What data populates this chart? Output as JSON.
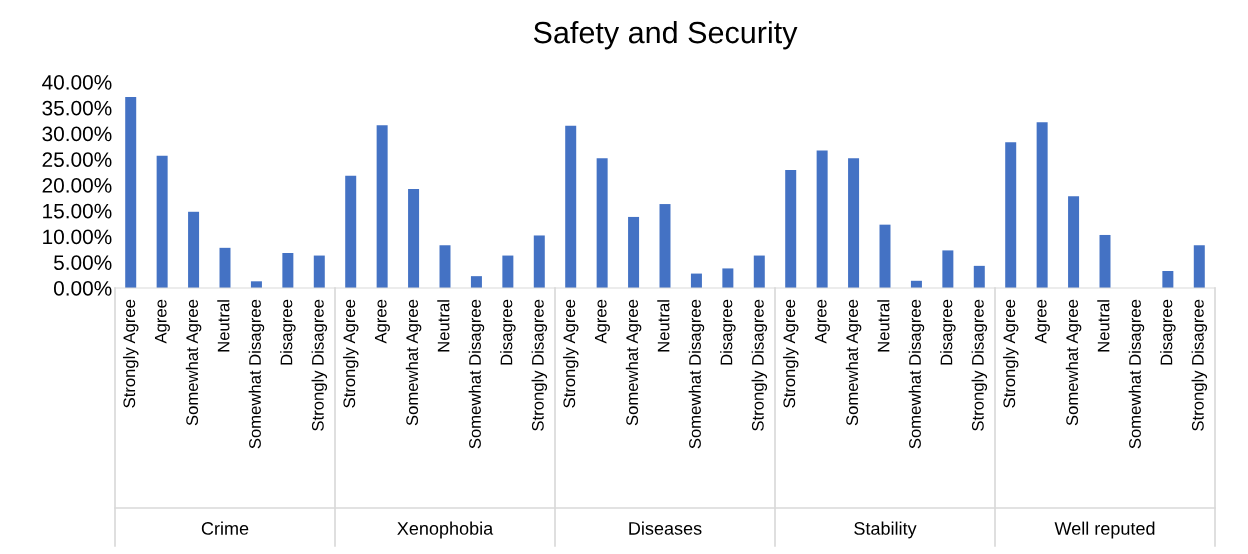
{
  "chart_data": {
    "type": "bar",
    "title": "Safety and Security",
    "categories": [
      "Strongly Agree",
      "Agree",
      "Somewhat Agree",
      "Neutral",
      "Somewhat Disagree",
      "Disagree",
      "Strongly Disagree",
      "Strongly Agree",
      "Agree",
      "Somewhat Agree",
      "Neutral",
      "Somewhat Disagree",
      "Disagree",
      "Strongly Disagree",
      "Strongly Agree",
      "Agree",
      "Somewhat Agree",
      "Neutral",
      "Somewhat Disagree",
      "Disagree",
      "Strongly Disagree",
      "Strongly Agree",
      "Agree",
      "Somewhat Agree",
      "Neutral",
      "Somewhat Disagree",
      "Disagree",
      "Strongly Disagree",
      "Strongly Agree",
      "Agree",
      "Somewhat Agree",
      "Neutral",
      "Somewhat Disagree",
      "Disagree",
      "Strongly Disagree"
    ],
    "values": [
      37.1,
      25.7,
      14.8,
      7.8,
      1.3,
      6.8,
      6.3,
      21.8,
      31.6,
      19.2,
      8.3,
      2.3,
      6.3,
      10.2,
      31.5,
      25.2,
      13.8,
      16.3,
      2.8,
      3.8,
      6.3,
      22.9,
      26.7,
      25.2,
      12.3,
      1.4,
      7.3,
      4.3,
      28.3,
      32.2,
      17.8,
      10.3,
      0,
      3.3,
      8.3
    ],
    "color": "#4472c4",
    "ylim": [
      0,
      40
    ],
    "yticks": [
      {
        "value": 0,
        "label": "0.00%"
      },
      {
        "value": 5,
        "label": "5.00%"
      },
      {
        "value": 10,
        "label": "10.00%"
      },
      {
        "value": 15,
        "label": "15.00%"
      },
      {
        "value": 20,
        "label": "20.00%"
      },
      {
        "value": 25,
        "label": "25.00%"
      },
      {
        "value": 30,
        "label": "30.00%"
      },
      {
        "value": 35,
        "label": "35.00%"
      },
      {
        "value": 40,
        "label": "40.00%"
      }
    ],
    "annotations": [
      "Crime",
      "Xenophobia",
      "Diseases",
      "Stability",
      "Well reputed"
    ],
    "grid": false,
    "legend": false
  }
}
